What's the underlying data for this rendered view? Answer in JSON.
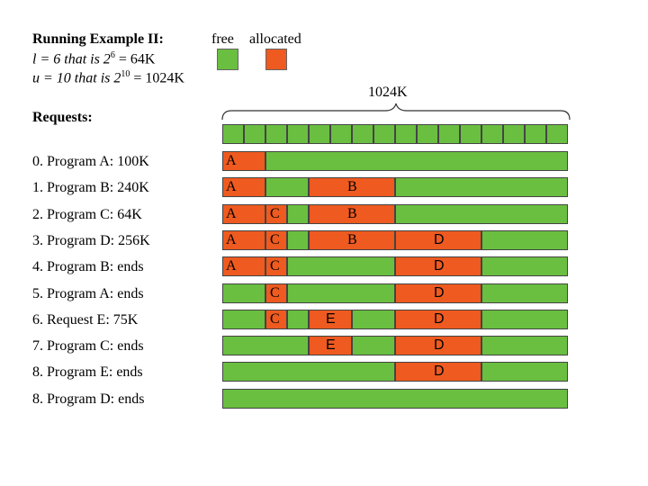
{
  "header": {
    "title": "Running Example II:",
    "line_l_pre": "l = 6 that is 2",
    "line_l_exp": "6",
    "line_l_post": " = 64K",
    "line_u_pre": "u = 10 that is 2",
    "line_u_exp": "10",
    "line_u_post": " = 1024K"
  },
  "legend": {
    "free_label": "free",
    "allocated_label": "allocated",
    "free_color": "#6abf40",
    "allocated_color": "#ee5a1f"
  },
  "memory": {
    "size_label": "1024K",
    "blocks_count": 16
  },
  "requests_heading": "Requests:",
  "requests": [
    "0. Program A: 100K",
    "1. Program B: 240K",
    "2. Program C: 64K",
    "3. Program D: 256K",
    "4. Program B: ends",
    "5. Program A: ends",
    "6. Request E: 75K",
    "7. Program C: ends",
    "8. Program E: ends",
    "8. Program D: ends"
  ],
  "rows": [
    {
      "segments": [
        {
          "label": "A",
          "status": "alloc",
          "start_k": 0,
          "size_k": 128
        },
        {
          "label": "",
          "status": "free",
          "start_k": 128,
          "size_k": 896
        }
      ]
    },
    {
      "segments": [
        {
          "label": "A",
          "status": "alloc",
          "start_k": 0,
          "size_k": 128
        },
        {
          "label": "",
          "status": "free",
          "start_k": 128,
          "size_k": 128
        },
        {
          "label": "B",
          "status": "alloc",
          "start_k": 256,
          "size_k": 256
        },
        {
          "label": "",
          "status": "free",
          "start_k": 512,
          "size_k": 512
        }
      ]
    },
    {
      "segments": [
        {
          "label": "A",
          "status": "alloc",
          "start_k": 0,
          "size_k": 128
        },
        {
          "label": "C",
          "status": "alloc",
          "start_k": 128,
          "size_k": 64
        },
        {
          "label": "",
          "status": "free",
          "start_k": 192,
          "size_k": 64
        },
        {
          "label": "B",
          "status": "alloc",
          "start_k": 256,
          "size_k": 256
        },
        {
          "label": "",
          "status": "free",
          "start_k": 512,
          "size_k": 512
        }
      ]
    },
    {
      "segments": [
        {
          "label": "A",
          "status": "alloc",
          "start_k": 0,
          "size_k": 128
        },
        {
          "label": "C",
          "status": "alloc",
          "start_k": 128,
          "size_k": 64
        },
        {
          "label": "",
          "status": "free",
          "start_k": 192,
          "size_k": 64
        },
        {
          "label": "B",
          "status": "alloc",
          "start_k": 256,
          "size_k": 256
        },
        {
          "label": "D",
          "status": "alloc",
          "start_k": 512,
          "size_k": 256
        },
        {
          "label": "",
          "status": "free",
          "start_k": 768,
          "size_k": 256
        }
      ]
    },
    {
      "segments": [
        {
          "label": "A",
          "status": "alloc",
          "start_k": 0,
          "size_k": 128
        },
        {
          "label": "C",
          "status": "alloc",
          "start_k": 128,
          "size_k": 64
        },
        {
          "label": "",
          "status": "free",
          "start_k": 192,
          "size_k": 320
        },
        {
          "label": "D",
          "status": "alloc",
          "start_k": 512,
          "size_k": 256
        },
        {
          "label": "",
          "status": "free",
          "start_k": 768,
          "size_k": 256
        }
      ]
    },
    {
      "segments": [
        {
          "label": "",
          "status": "free",
          "start_k": 0,
          "size_k": 128
        },
        {
          "label": "C",
          "status": "alloc",
          "start_k": 128,
          "size_k": 64
        },
        {
          "label": "",
          "status": "free",
          "start_k": 192,
          "size_k": 320
        },
        {
          "label": "D",
          "status": "alloc",
          "start_k": 512,
          "size_k": 256
        },
        {
          "label": "",
          "status": "free",
          "start_k": 768,
          "size_k": 256
        }
      ]
    },
    {
      "segments": [
        {
          "label": "",
          "status": "free",
          "start_k": 0,
          "size_k": 128
        },
        {
          "label": "C",
          "status": "alloc",
          "start_k": 128,
          "size_k": 64
        },
        {
          "label": "",
          "status": "free",
          "start_k": 192,
          "size_k": 64
        },
        {
          "label": "E",
          "status": "alloc",
          "start_k": 256,
          "size_k": 128
        },
        {
          "label": "",
          "status": "free",
          "start_k": 384,
          "size_k": 128
        },
        {
          "label": "D",
          "status": "alloc",
          "start_k": 512,
          "size_k": 256
        },
        {
          "label": "",
          "status": "free",
          "start_k": 768,
          "size_k": 256
        }
      ]
    },
    {
      "segments": [
        {
          "label": "",
          "status": "free",
          "start_k": 0,
          "size_k": 256
        },
        {
          "label": "E",
          "status": "alloc",
          "start_k": 256,
          "size_k": 128
        },
        {
          "label": "",
          "status": "free",
          "start_k": 384,
          "size_k": 128
        },
        {
          "label": "D",
          "status": "alloc",
          "start_k": 512,
          "size_k": 256
        },
        {
          "label": "",
          "status": "free",
          "start_k": 768,
          "size_k": 256
        }
      ]
    },
    {
      "segments": [
        {
          "label": "",
          "status": "free",
          "start_k": 0,
          "size_k": 512
        },
        {
          "label": "D",
          "status": "alloc",
          "start_k": 512,
          "size_k": 256
        },
        {
          "label": "",
          "status": "free",
          "start_k": 768,
          "size_k": 256
        }
      ]
    },
    {
      "segments": [
        {
          "label": "",
          "status": "free",
          "start_k": 0,
          "size_k": 1024
        }
      ]
    }
  ]
}
